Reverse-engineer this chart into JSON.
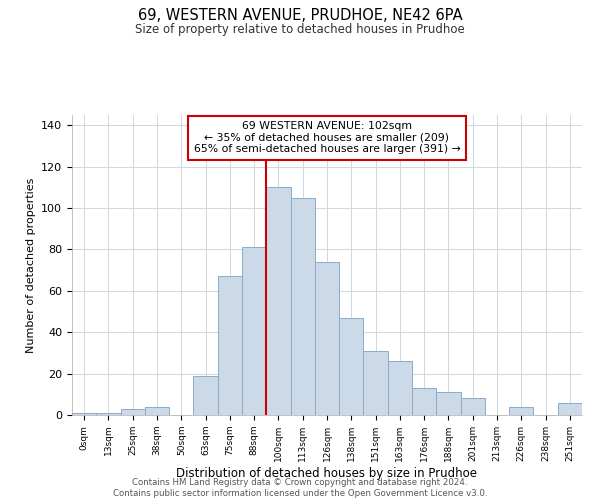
{
  "title": "69, WESTERN AVENUE, PRUDHOE, NE42 6PA",
  "subtitle": "Size of property relative to detached houses in Prudhoe",
  "xlabel": "Distribution of detached houses by size in Prudhoe",
  "ylabel": "Number of detached properties",
  "bar_labels": [
    "0sqm",
    "13sqm",
    "25sqm",
    "38sqm",
    "50sqm",
    "63sqm",
    "75sqm",
    "88sqm",
    "100sqm",
    "113sqm",
    "126sqm",
    "138sqm",
    "151sqm",
    "163sqm",
    "176sqm",
    "188sqm",
    "201sqm",
    "213sqm",
    "226sqm",
    "238sqm",
    "251sqm"
  ],
  "bar_values": [
    1,
    1,
    3,
    4,
    0,
    19,
    67,
    81,
    110,
    105,
    74,
    47,
    31,
    26,
    13,
    11,
    8,
    0,
    4,
    0,
    6
  ],
  "bar_color": "#ccd9e8",
  "bar_edge_color": "#8aaac8",
  "vline_index": 8,
  "vline_color": "#cc0000",
  "annotation_line1": "69 WESTERN AVENUE: 102sqm",
  "annotation_line2": "← 35% of detached houses are smaller (209)",
  "annotation_line3": "65% of semi-detached houses are larger (391) →",
  "annotation_box_color": "#ffffff",
  "annotation_box_edge_color": "#cc0000",
  "ylim": [
    0,
    145
  ],
  "yticks": [
    0,
    20,
    40,
    60,
    80,
    100,
    120,
    140
  ],
  "footer_line1": "Contains HM Land Registry data © Crown copyright and database right 2024.",
  "footer_line2": "Contains public sector information licensed under the Open Government Licence v3.0.",
  "background_color": "#ffffff",
  "grid_color": "#d0d8e0"
}
